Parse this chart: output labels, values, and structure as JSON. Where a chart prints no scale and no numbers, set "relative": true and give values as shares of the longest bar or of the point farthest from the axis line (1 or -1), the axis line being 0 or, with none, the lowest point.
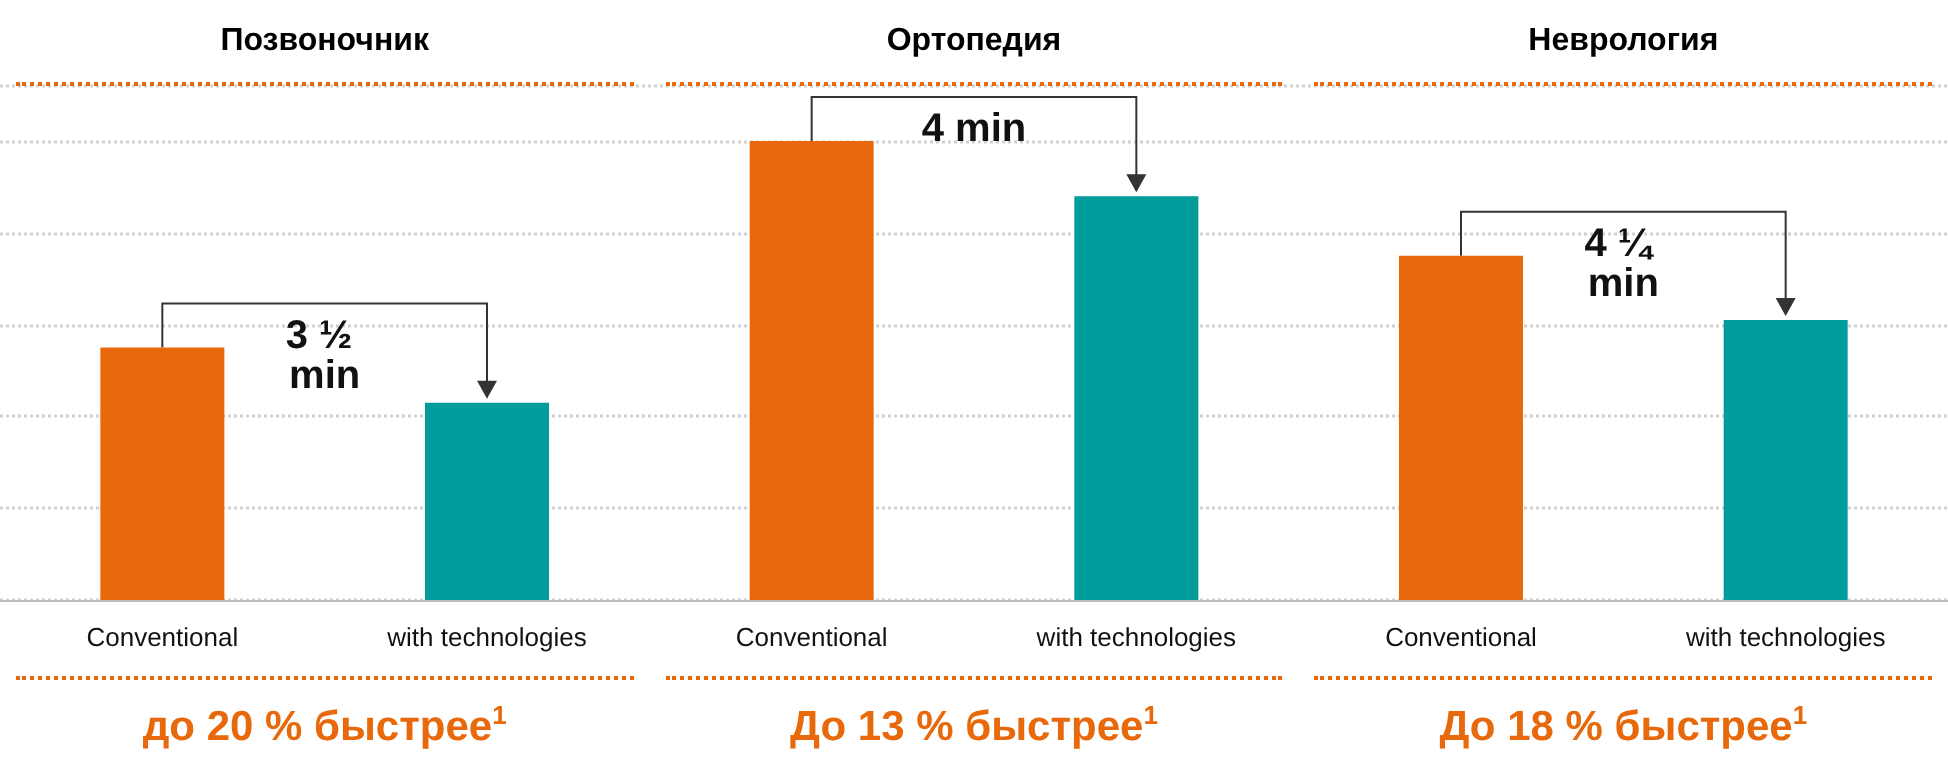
{
  "chart_data": {
    "type": "bar",
    "relative": true,
    "categories": [
      "Conventional",
      "with technologies",
      "Conventional",
      "with technologies",
      "Conventional",
      "with technologies"
    ],
    "values": [
      0.55,
      0.43,
      1,
      0.88,
      0.75,
      0.61
    ],
    "colors": [
      "#e8690b",
      "#009b9b",
      "#e8690b",
      "#009b9b",
      "#e8690b",
      "#009b9b"
    ],
    "grid": "y",
    "annotations": [
      "Позвоночник",
      "Ортопедия",
      "Неврология",
      "3 ½ min",
      "4 min",
      "4 ¼ min",
      "до 20 % быстрее$^{1}$",
      "До 13 % быстрее$^{1}$",
      "До 18 % быстрее$^{1}$"
    ]
  }
}
